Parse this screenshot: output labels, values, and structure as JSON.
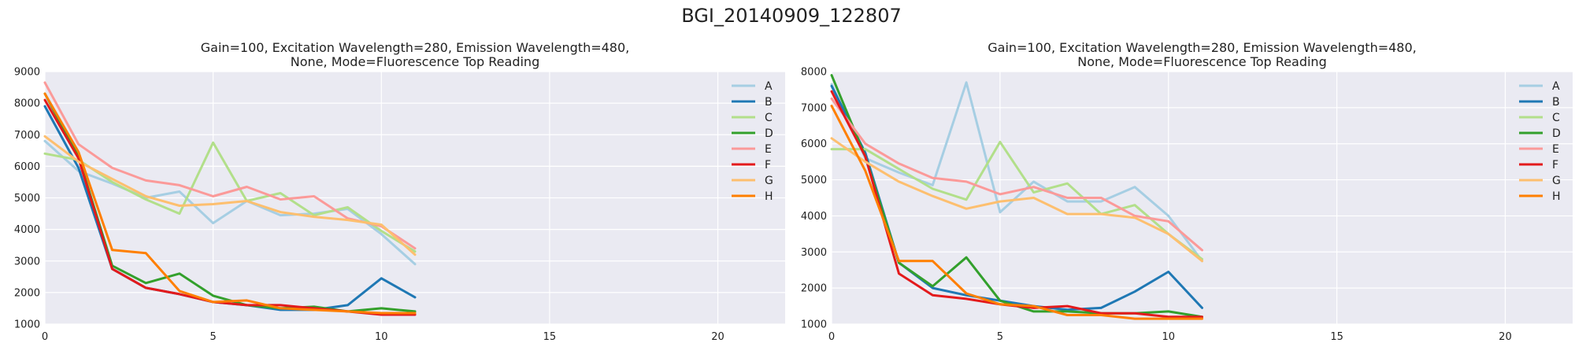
{
  "figure_title": "BGI_20140909_122807",
  "colors": [
    "#a6cee3",
    "#1f78b4",
    "#b2df8a",
    "#33a02c",
    "#fb9a99",
    "#e31a1c",
    "#fdbf6f",
    "#ff7f00"
  ],
  "chart_data": [
    {
      "type": "line",
      "title_lines": [
        "Gain=100, Excitation Wavelength=280, Emission Wavelength=480,",
        "None, Mode=Fluorescence Top Reading"
      ],
      "xlim": [
        0,
        22
      ],
      "ylim": [
        1000,
        9000
      ],
      "xticks": [
        0,
        5,
        10,
        15,
        20
      ],
      "yticks": [
        1000,
        2000,
        3000,
        4000,
        5000,
        6000,
        7000,
        8000,
        9000
      ],
      "grid": true,
      "legend": "top-right",
      "x": [
        0,
        1,
        2,
        3,
        4,
        5,
        6,
        7,
        8,
        9,
        10,
        11
      ],
      "series": [
        {
          "name": "A",
          "values": [
            6800,
            5850,
            5450,
            5000,
            5200,
            4200,
            4900,
            4450,
            4500,
            4650,
            3850,
            2900
          ]
        },
        {
          "name": "B",
          "values": [
            7900,
            5950,
            2750,
            2150,
            1950,
            1700,
            1600,
            1450,
            1450,
            1600,
            2450,
            1850
          ]
        },
        {
          "name": "C",
          "values": [
            6400,
            6200,
            5500,
            4950,
            4500,
            6750,
            4900,
            5150,
            4450,
            4700,
            3950,
            3300
          ]
        },
        {
          "name": "D",
          "values": [
            8300,
            6300,
            2850,
            2300,
            2600,
            1900,
            1600,
            1500,
            1550,
            1400,
            1500,
            1400
          ]
        },
        {
          "name": "E",
          "values": [
            8650,
            6700,
            5950,
            5550,
            5400,
            5050,
            5350,
            4950,
            5050,
            4350,
            4100,
            3400
          ]
        },
        {
          "name": "F",
          "values": [
            8100,
            6250,
            2750,
            2150,
            1950,
            1700,
            1600,
            1600,
            1500,
            1400,
            1300,
            1300
          ]
        },
        {
          "name": "G",
          "values": [
            6950,
            6150,
            5600,
            5050,
            4750,
            4800,
            4900,
            4550,
            4400,
            4300,
            4150,
            3200
          ]
        },
        {
          "name": "H",
          "values": [
            8300,
            6450,
            3350,
            3250,
            2050,
            1700,
            1750,
            1500,
            1450,
            1400,
            1350,
            1350
          ]
        }
      ]
    },
    {
      "type": "line",
      "title_lines": [
        "Gain=100, Excitation Wavelength=280, Emission Wavelength=480,",
        "None, Mode=Fluorescence Top Reading"
      ],
      "xlim": [
        0,
        22
      ],
      "ylim": [
        1000,
        8000
      ],
      "xticks": [
        0,
        5,
        10,
        15,
        20
      ],
      "yticks": [
        1000,
        2000,
        3000,
        4000,
        5000,
        6000,
        7000,
        8000
      ],
      "grid": true,
      "legend": "top-right",
      "x": [
        0,
        1,
        2,
        3,
        4,
        5,
        6,
        7,
        8,
        9,
        10,
        11
      ],
      "series": [
        {
          "name": "A",
          "values": [
            7650,
            5600,
            5200,
            4850,
            7700,
            4100,
            4950,
            4400,
            4400,
            4800,
            4000,
            2750
          ]
        },
        {
          "name": "B",
          "values": [
            7600,
            5750,
            2700,
            2000,
            1800,
            1650,
            1500,
            1400,
            1450,
            1900,
            2450,
            1450
          ]
        },
        {
          "name": "C",
          "values": [
            5850,
            5850,
            5300,
            4750,
            4450,
            6050,
            4650,
            4900,
            4050,
            4300,
            3500,
            2800
          ]
        },
        {
          "name": "D",
          "values": [
            7900,
            5650,
            2700,
            2050,
            2850,
            1650,
            1350,
            1350,
            1300,
            1300,
            1350,
            1200
          ]
        },
        {
          "name": "E",
          "values": [
            7250,
            6000,
            5450,
            5050,
            4950,
            4600,
            4800,
            4500,
            4500,
            4000,
            3850,
            3050
          ]
        },
        {
          "name": "F",
          "values": [
            7450,
            5650,
            2400,
            1800,
            1700,
            1550,
            1450,
            1500,
            1300,
            1300,
            1200,
            1200
          ]
        },
        {
          "name": "G",
          "values": [
            6150,
            5500,
            4950,
            4550,
            4200,
            4400,
            4500,
            4050,
            4050,
            3950,
            3500,
            2750
          ]
        },
        {
          "name": "H",
          "values": [
            7050,
            5250,
            2750,
            2750,
            1850,
            1550,
            1500,
            1250,
            1250,
            1150,
            1150,
            1150
          ]
        }
      ]
    }
  ]
}
